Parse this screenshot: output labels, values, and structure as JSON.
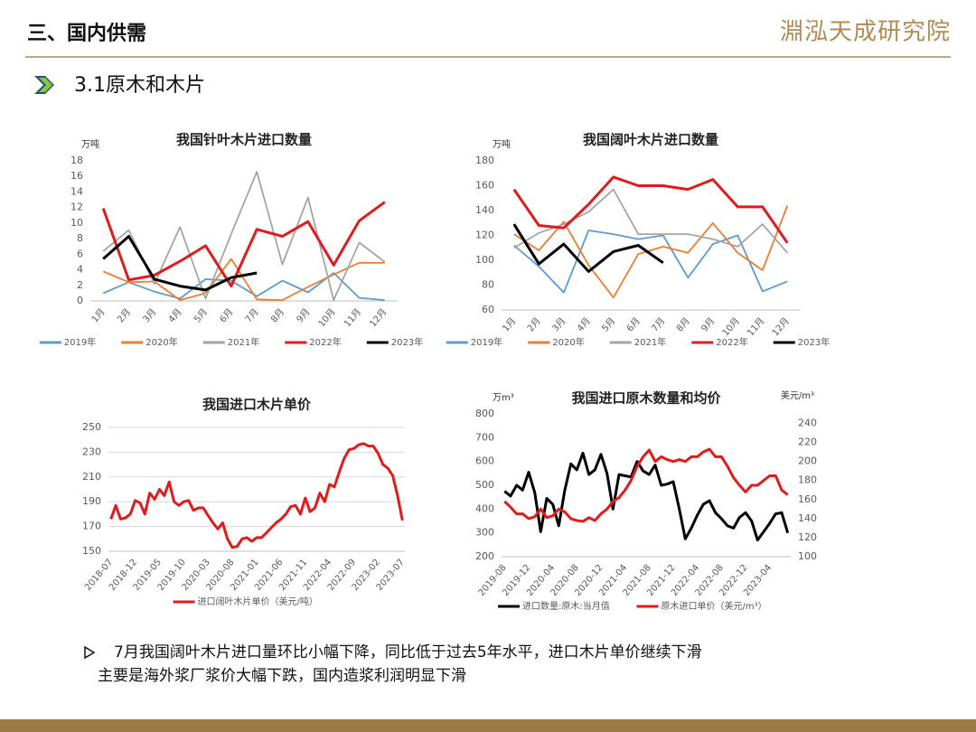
{
  "header": {
    "title": "三、国内供需",
    "logo": "淵泓天成研究院"
  },
  "section": {
    "title": "3.1原木和木片"
  },
  "chart_data": [
    {
      "type": "line",
      "title": "我国针叶木片进口数量",
      "y_label": "万吨",
      "categories": [
        "1月",
        "2月",
        "3月",
        "4月",
        "5月",
        "6月",
        "7月",
        "8月",
        "9月",
        "10月",
        "11月",
        "12月"
      ],
      "ylim": [
        0,
        18
      ],
      "yticks": [
        0,
        2,
        4,
        6,
        8,
        10,
        12,
        14,
        16,
        18
      ],
      "grid": false,
      "legend": "bottom",
      "series": [
        {
          "name": "2019年",
          "color": "#5b9bd5",
          "values": [
            1.0,
            2.4,
            1.2,
            0.3,
            2.8,
            2.6,
            0.6,
            2.6,
            1.1,
            3.6,
            0.4,
            0.1
          ]
        },
        {
          "name": "2020年",
          "color": "#ed7d31",
          "values": [
            3.8,
            2.4,
            2.5,
            0.1,
            1.0,
            5.4,
            0.2,
            0.1,
            1.8,
            3.4,
            4.9,
            4.9
          ]
        },
        {
          "name": "2021年",
          "color": "#a5a5a5",
          "values": [
            6.4,
            9.1,
            2.2,
            9.5,
            0.3,
            8.6,
            16.6,
            4.7,
            13.3,
            0.1,
            7.5,
            5.0
          ]
        },
        {
          "name": "2022年",
          "color": "#e31a1c",
          "values": [
            11.9,
            2.7,
            3.3,
            5.1,
            7.1,
            1.9,
            9.2,
            8.3,
            10.2,
            4.6,
            10.3,
            12.7
          ]
        },
        {
          "name": "2023年",
          "color": "#000000",
          "values": [
            5.4,
            8.3,
            2.8,
            1.9,
            1.4,
            3.0,
            3.6,
            null,
            null,
            null,
            null,
            null
          ]
        }
      ]
    },
    {
      "type": "line",
      "title": "我国阔叶木片进口数量",
      "y_label": "万吨",
      "categories": [
        "1月",
        "2月",
        "3月",
        "4月",
        "5月",
        "6月",
        "7月",
        "8月",
        "9月",
        "10月",
        "11月",
        "12月"
      ],
      "ylim": [
        60,
        180
      ],
      "yticks": [
        60,
        80,
        100,
        120,
        140,
        160,
        180
      ],
      "grid": false,
      "legend": "bottom",
      "series": [
        {
          "name": "2019年",
          "color": "#5b9bd5",
          "values": [
            112,
            95,
            74,
            124,
            121,
            117,
            120,
            86,
            113,
            120,
            75,
            83
          ]
        },
        {
          "name": "2020年",
          "color": "#ed7d31",
          "values": [
            121,
            108,
            131,
            96,
            70,
            105,
            111,
            106,
            130,
            106,
            92,
            144
          ]
        },
        {
          "name": "2021年",
          "color": "#a5a5a5",
          "values": [
            110,
            122,
            129,
            139,
            157,
            121,
            121,
            121,
            117,
            111,
            129,
            106
          ]
        },
        {
          "name": "2022年",
          "color": "#e31a1c",
          "values": [
            157,
            128,
            126,
            145,
            167,
            160,
            160,
            157,
            165,
            143,
            143,
            114
          ]
        },
        {
          "name": "2023年",
          "color": "#000000",
          "values": [
            129,
            97,
            113,
            91,
            107,
            112,
            98,
            null,
            null,
            null,
            null,
            null
          ]
        }
      ]
    },
    {
      "type": "line",
      "title": "我国进口木片单价",
      "categories": [
        "2018-07",
        null,
        null,
        null,
        null,
        "2018-12",
        null,
        null,
        null,
        null,
        "2019-05",
        null,
        null,
        null,
        null,
        "2019-10",
        null,
        null,
        null,
        null,
        "2020-03",
        null,
        null,
        null,
        null,
        "2020-08",
        null,
        null,
        null,
        null,
        "2021-01",
        null,
        null,
        null,
        null,
        "2021-06",
        null,
        null,
        null,
        null,
        "2021-11",
        null,
        null,
        null,
        null,
        "2022-04",
        null,
        null,
        null,
        null,
        "2022-09",
        null,
        null,
        null,
        null,
        "2023-02",
        null,
        null,
        null,
        null,
        "2023-07"
      ],
      "ylim": [
        150,
        250
      ],
      "yticks": [
        150,
        170,
        190,
        210,
        230,
        250
      ],
      "grid": true,
      "legend": "bottom",
      "series": [
        {
          "name": "进口阔叶木片单价（美元/吨）",
          "color": "#e31a1c",
          "values": [
            176,
            187,
            176,
            177,
            180,
            191,
            189,
            180,
            197,
            192,
            200,
            195,
            206,
            190,
            187,
            190,
            191,
            183,
            185,
            185,
            179,
            173,
            168,
            173,
            160,
            153,
            154,
            160,
            161,
            158,
            161,
            161,
            165,
            169,
            173,
            176,
            180,
            186,
            187,
            180,
            193,
            182,
            185,
            197,
            190,
            204,
            202,
            214,
            225,
            232,
            233,
            236,
            237,
            235,
            235,
            229,
            220,
            217,
            211,
            195,
            175
          ]
        }
      ]
    },
    {
      "type": "line",
      "title": "我国进口原木数量和均价",
      "y_label": "万m³",
      "y2_label": "美元/m³",
      "categories": [
        "2019-08",
        null,
        null,
        null,
        "2019-12",
        null,
        null,
        null,
        "2020-04",
        null,
        null,
        null,
        "2020-08",
        null,
        null,
        null,
        "2020-12",
        null,
        null,
        null,
        "2021-04",
        null,
        null,
        null,
        "2021-08",
        null,
        null,
        null,
        "2021-12",
        null,
        null,
        null,
        "2022-04",
        null,
        null,
        null,
        "2022-08",
        null,
        null,
        null,
        "2022-12",
        null,
        null,
        null,
        "2023-04",
        null,
        null,
        null
      ],
      "ylim": [
        200,
        800
      ],
      "yticks": [
        200,
        300,
        400,
        500,
        600,
        700,
        800
      ],
      "y2lim": [
        100,
        250
      ],
      "y2ticks": [
        100,
        120,
        140,
        160,
        180,
        200,
        220,
        240
      ],
      "grid": false,
      "legend": "bottom",
      "series": [
        {
          "name": "进口数量:原木:当月值",
          "color": "#000000",
          "values": [
            475,
            455,
            500,
            480,
            555,
            470,
            305,
            445,
            420,
            330,
            480,
            590,
            565,
            635,
            545,
            565,
            630,
            550,
            400,
            545,
            540,
            535,
            600,
            560,
            545,
            585,
            500,
            505,
            515,
            400,
            275,
            320,
            375,
            420,
            435,
            385,
            360,
            330,
            320,
            365,
            385,
            350,
            270,
            305,
            340,
            380,
            385,
            300
          ]
        },
        {
          "name": "原木进口单价（美元/m³）",
          "color": "#e31a1c",
          "axis": "y2",
          "values": [
            158,
            152,
            145,
            145,
            140,
            142,
            150,
            141,
            143,
            150,
            147,
            140,
            138,
            137,
            141,
            138,
            145,
            150,
            158,
            162,
            170,
            180,
            195,
            205,
            212,
            200,
            205,
            202,
            200,
            202,
            200,
            205,
            205,
            210,
            213,
            205,
            205,
            195,
            183,
            175,
            168,
            175,
            175,
            180,
            185,
            185,
            170,
            165
          ]
        }
      ]
    }
  ],
  "notes": {
    "lines": [
      "7月我国阔叶木片进口量环比小幅下降，同比低于过去5年水平，进口木片单价继续下滑",
      "主要是海外浆厂浆价大幅下跌，国内造浆利润明显下滑"
    ]
  }
}
